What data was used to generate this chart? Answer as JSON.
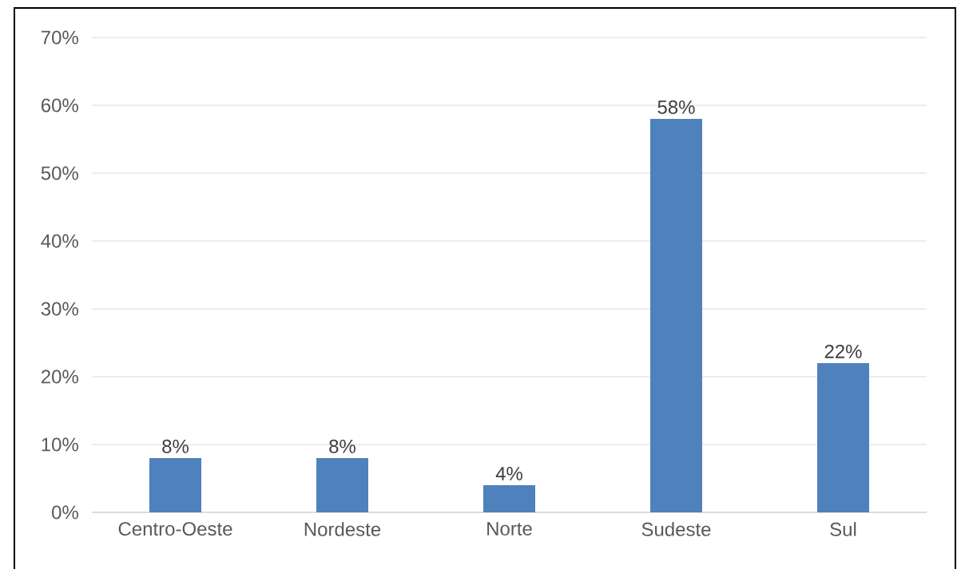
{
  "chart_data": {
    "type": "bar",
    "categories": [
      "Centro-Oeste",
      "Nordeste",
      "Norte",
      "Sudeste",
      "Sul"
    ],
    "values": [
      8,
      8,
      4,
      58,
      22
    ],
    "value_labels": [
      "8%",
      "8%",
      "4%",
      "58%",
      "22%"
    ],
    "color": "#4f81bd",
    "ylim": [
      0,
      70
    ],
    "yticks": [
      {
        "value": 0,
        "label": "0%"
      },
      {
        "value": 10,
        "label": "10%"
      },
      {
        "value": 20,
        "label": "20%"
      },
      {
        "value": 30,
        "label": "30%"
      },
      {
        "value": 40,
        "label": "40%"
      },
      {
        "value": 50,
        "label": "50%"
      },
      {
        "value": 60,
        "label": "60%"
      },
      {
        "value": 70,
        "label": "70%"
      }
    ],
    "grid": "y"
  }
}
